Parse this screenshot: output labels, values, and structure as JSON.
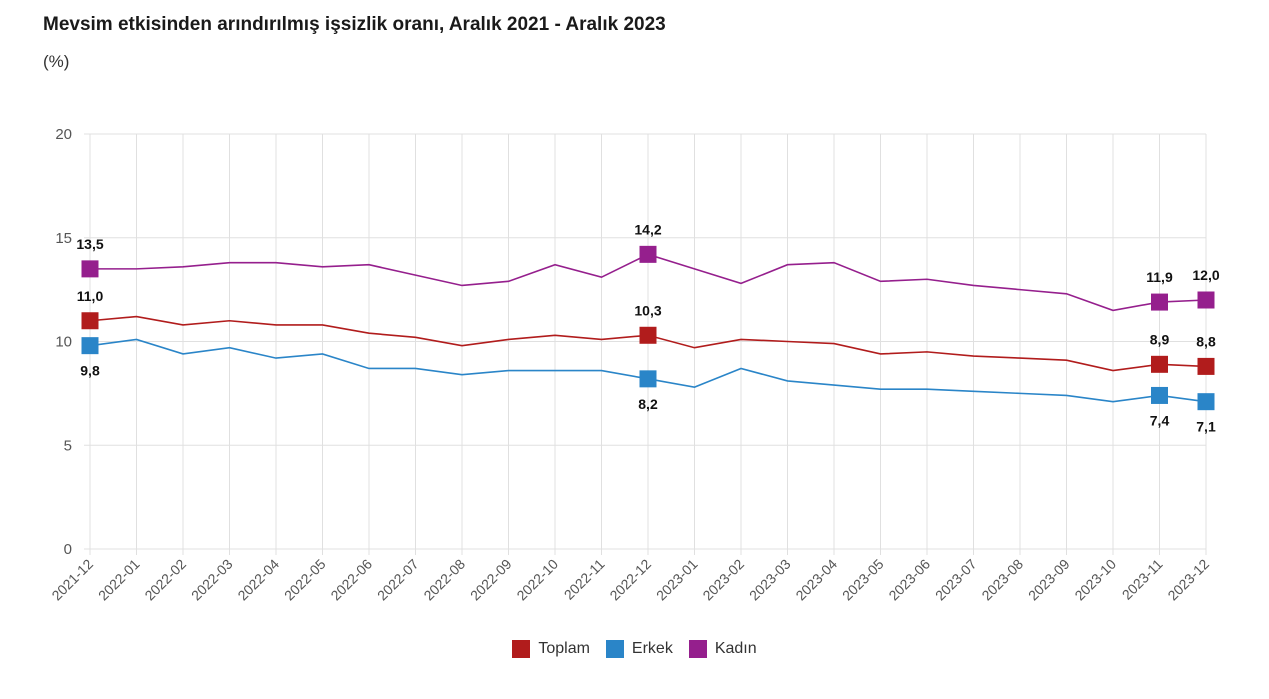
{
  "chart_data": {
    "type": "line",
    "title": "Mevsim etkisinden arındırılmış işsizlik oranı, Aralık 2021 - Aralık 2023",
    "subtitle": "(%)",
    "categories": [
      "2021-12",
      "2022-01",
      "2022-02",
      "2022-03",
      "2022-04",
      "2022-05",
      "2022-06",
      "2022-07",
      "2022-08",
      "2022-09",
      "2022-10",
      "2022-11",
      "2022-12",
      "2023-01",
      "2023-02",
      "2023-03",
      "2023-04",
      "2023-05",
      "2023-06",
      "2023-07",
      "2023-08",
      "2023-09",
      "2023-10",
      "2023-11",
      "2023-12"
    ],
    "ylim": [
      0,
      20
    ],
    "yticks": [
      0,
      5,
      10,
      15,
      20
    ],
    "grid": true,
    "legend_position": "bottom",
    "series": [
      {
        "name": "Toplam",
        "color": "#b11c1c",
        "values": [
          11.0,
          11.2,
          10.8,
          11.0,
          10.8,
          10.8,
          10.4,
          10.2,
          9.8,
          10.1,
          10.3,
          10.1,
          10.3,
          9.7,
          10.1,
          10.0,
          9.9,
          9.4,
          9.5,
          9.3,
          9.2,
          9.1,
          8.6,
          8.9,
          8.8
        ],
        "labels": {
          "0": "11,0",
          "12": "10,3",
          "23": "8,9",
          "24": "8,8"
        }
      },
      {
        "name": "Erkek",
        "color": "#2a85c8",
        "values": [
          9.8,
          10.1,
          9.4,
          9.7,
          9.2,
          9.4,
          8.7,
          8.7,
          8.4,
          8.6,
          8.6,
          8.6,
          8.2,
          7.8,
          8.7,
          8.1,
          7.9,
          7.7,
          7.7,
          7.6,
          7.5,
          7.4,
          7.1,
          7.4,
          7.1
        ],
        "labels": {
          "0": "9,8",
          "12": "8,2",
          "23": "7,4",
          "24": "7,1"
        }
      },
      {
        "name": "Kadın",
        "color": "#951f8d",
        "values": [
          13.5,
          13.5,
          13.6,
          13.8,
          13.8,
          13.6,
          13.7,
          13.2,
          12.7,
          12.9,
          13.7,
          13.1,
          14.2,
          13.5,
          12.8,
          13.7,
          13.8,
          12.9,
          13.0,
          12.7,
          12.5,
          12.3,
          11.5,
          11.9,
          12.0
        ],
        "labels": {
          "0": "13,5",
          "12": "14,2",
          "23": "11,9",
          "24": "12,0"
        }
      }
    ]
  }
}
